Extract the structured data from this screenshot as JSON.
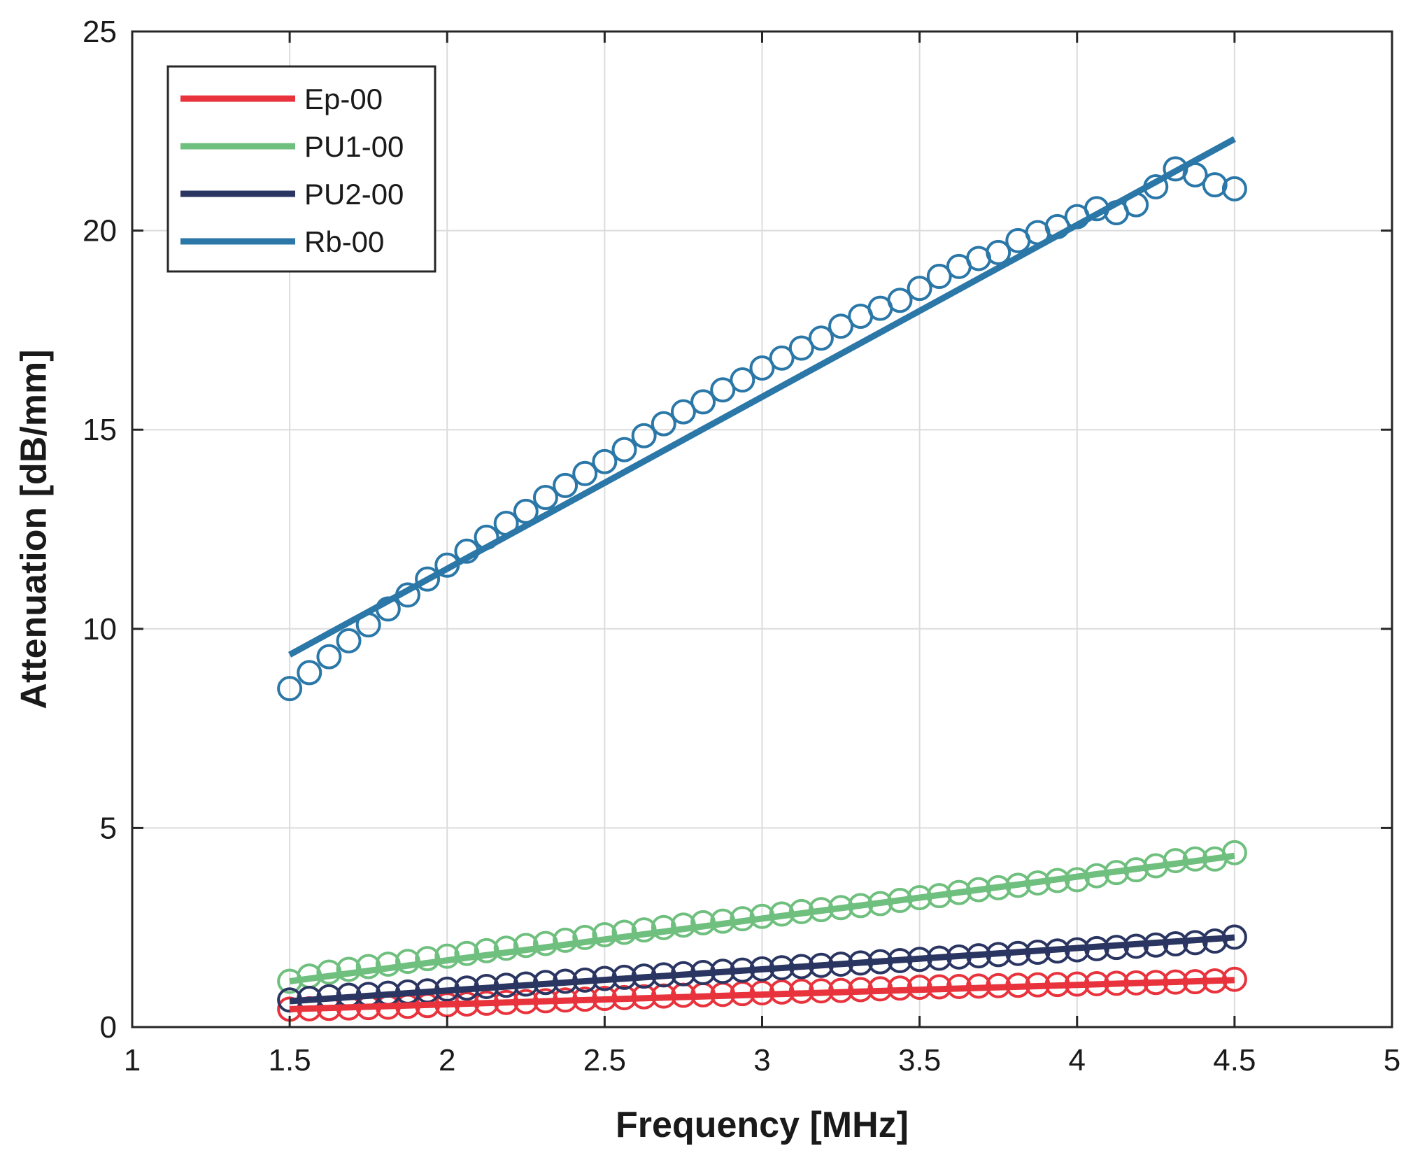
{
  "chart_data": {
    "type": "scatter",
    "title": "",
    "xlabel": "Frequency [MHz]",
    "ylabel": "Attenuation [dB/mm]",
    "xlim": [
      1,
      5
    ],
    "ylim": [
      0,
      25
    ],
    "xticks": [
      1,
      1.5,
      2,
      2.5,
      3,
      3.5,
      4,
      4.5,
      5
    ],
    "xtick_labels": [
      "1",
      "1.5",
      "2",
      "2.5",
      "3",
      "3.5",
      "4",
      "4.5",
      "5"
    ],
    "yticks": [
      0,
      5,
      10,
      15,
      20,
      25
    ],
    "ytick_labels": [
      "0",
      "5",
      "10",
      "15",
      "20",
      "25"
    ],
    "grid": true,
    "legend_position": "top-left",
    "x": [
      1.5,
      1.5625,
      1.625,
      1.6875,
      1.75,
      1.8125,
      1.875,
      1.9375,
      2,
      2.0625,
      2.125,
      2.1875,
      2.25,
      2.3125,
      2.375,
      2.4375,
      2.5,
      2.5625,
      2.625,
      2.6875,
      2.75,
      2.8125,
      2.875,
      2.9375,
      3,
      3.0625,
      3.125,
      3.1875,
      3.25,
      3.3125,
      3.375,
      3.4375,
      3.5,
      3.5625,
      3.625,
      3.6875,
      3.75,
      3.8125,
      3.875,
      3.9375,
      4,
      4.0625,
      4.125,
      4.1875,
      4.25,
      4.3125,
      4.375,
      4.4375,
      4.5
    ],
    "series": [
      {
        "name": "Ep-00",
        "color": "#e8323c",
        "fit": [
          0.45,
          1.18
        ],
        "values": [
          0.45,
          0.46,
          0.47,
          0.48,
          0.49,
          0.5,
          0.52,
          0.54,
          0.56,
          0.58,
          0.6,
          0.62,
          0.64,
          0.66,
          0.68,
          0.7,
          0.72,
          0.74,
          0.76,
          0.78,
          0.8,
          0.81,
          0.82,
          0.84,
          0.86,
          0.88,
          0.9,
          0.91,
          0.92,
          0.94,
          0.96,
          0.98,
          1.0,
          1.01,
          1.02,
          1.03,
          1.04,
          1.05,
          1.06,
          1.07,
          1.08,
          1.09,
          1.1,
          1.11,
          1.12,
          1.13,
          1.14,
          1.16,
          1.2
        ]
      },
      {
        "name": "PU1-00",
        "color": "#6fbf7e",
        "fit": [
          1.15,
          4.3
        ],
        "values": [
          1.15,
          1.28,
          1.38,
          1.45,
          1.52,
          1.58,
          1.65,
          1.72,
          1.78,
          1.85,
          1.92,
          1.98,
          2.05,
          2.1,
          2.18,
          2.25,
          2.32,
          2.38,
          2.44,
          2.5,
          2.56,
          2.62,
          2.66,
          2.72,
          2.78,
          2.84,
          2.9,
          2.95,
          3.0,
          3.05,
          3.1,
          3.18,
          3.25,
          3.3,
          3.38,
          3.45,
          3.5,
          3.56,
          3.62,
          3.68,
          3.7,
          3.8,
          3.88,
          3.95,
          4.05,
          4.18,
          4.22,
          4.22,
          4.38
        ]
      },
      {
        "name": "PU2-00",
        "color": "#2a3561",
        "fit": [
          0.65,
          2.25
        ],
        "values": [
          0.68,
          0.72,
          0.76,
          0.8,
          0.82,
          0.85,
          0.88,
          0.91,
          0.95,
          0.98,
          1.02,
          1.05,
          1.08,
          1.12,
          1.15,
          1.18,
          1.22,
          1.25,
          1.28,
          1.31,
          1.34,
          1.37,
          1.4,
          1.43,
          1.46,
          1.49,
          1.52,
          1.55,
          1.58,
          1.61,
          1.64,
          1.67,
          1.7,
          1.73,
          1.76,
          1.79,
          1.82,
          1.85,
          1.88,
          1.91,
          1.94,
          1.97,
          2.0,
          2.03,
          2.06,
          2.09,
          2.12,
          2.16,
          2.26
        ]
      },
      {
        "name": "Rb-00",
        "color": "#2a77a8",
        "fit": [
          9.35,
          22.3
        ],
        "values": [
          8.5,
          8.9,
          9.3,
          9.7,
          10.1,
          10.5,
          10.85,
          11.25,
          11.6,
          11.95,
          12.3,
          12.65,
          12.95,
          13.3,
          13.6,
          13.9,
          14.2,
          14.5,
          14.85,
          15.15,
          15.45,
          15.7,
          16.0,
          16.25,
          16.55,
          16.8,
          17.05,
          17.3,
          17.6,
          17.85,
          18.05,
          18.25,
          18.55,
          18.85,
          19.1,
          19.3,
          19.45,
          19.75,
          19.95,
          20.1,
          20.35,
          20.55,
          20.45,
          20.65,
          21.1,
          21.55,
          21.4,
          21.15,
          21.05
        ]
      }
    ]
  }
}
